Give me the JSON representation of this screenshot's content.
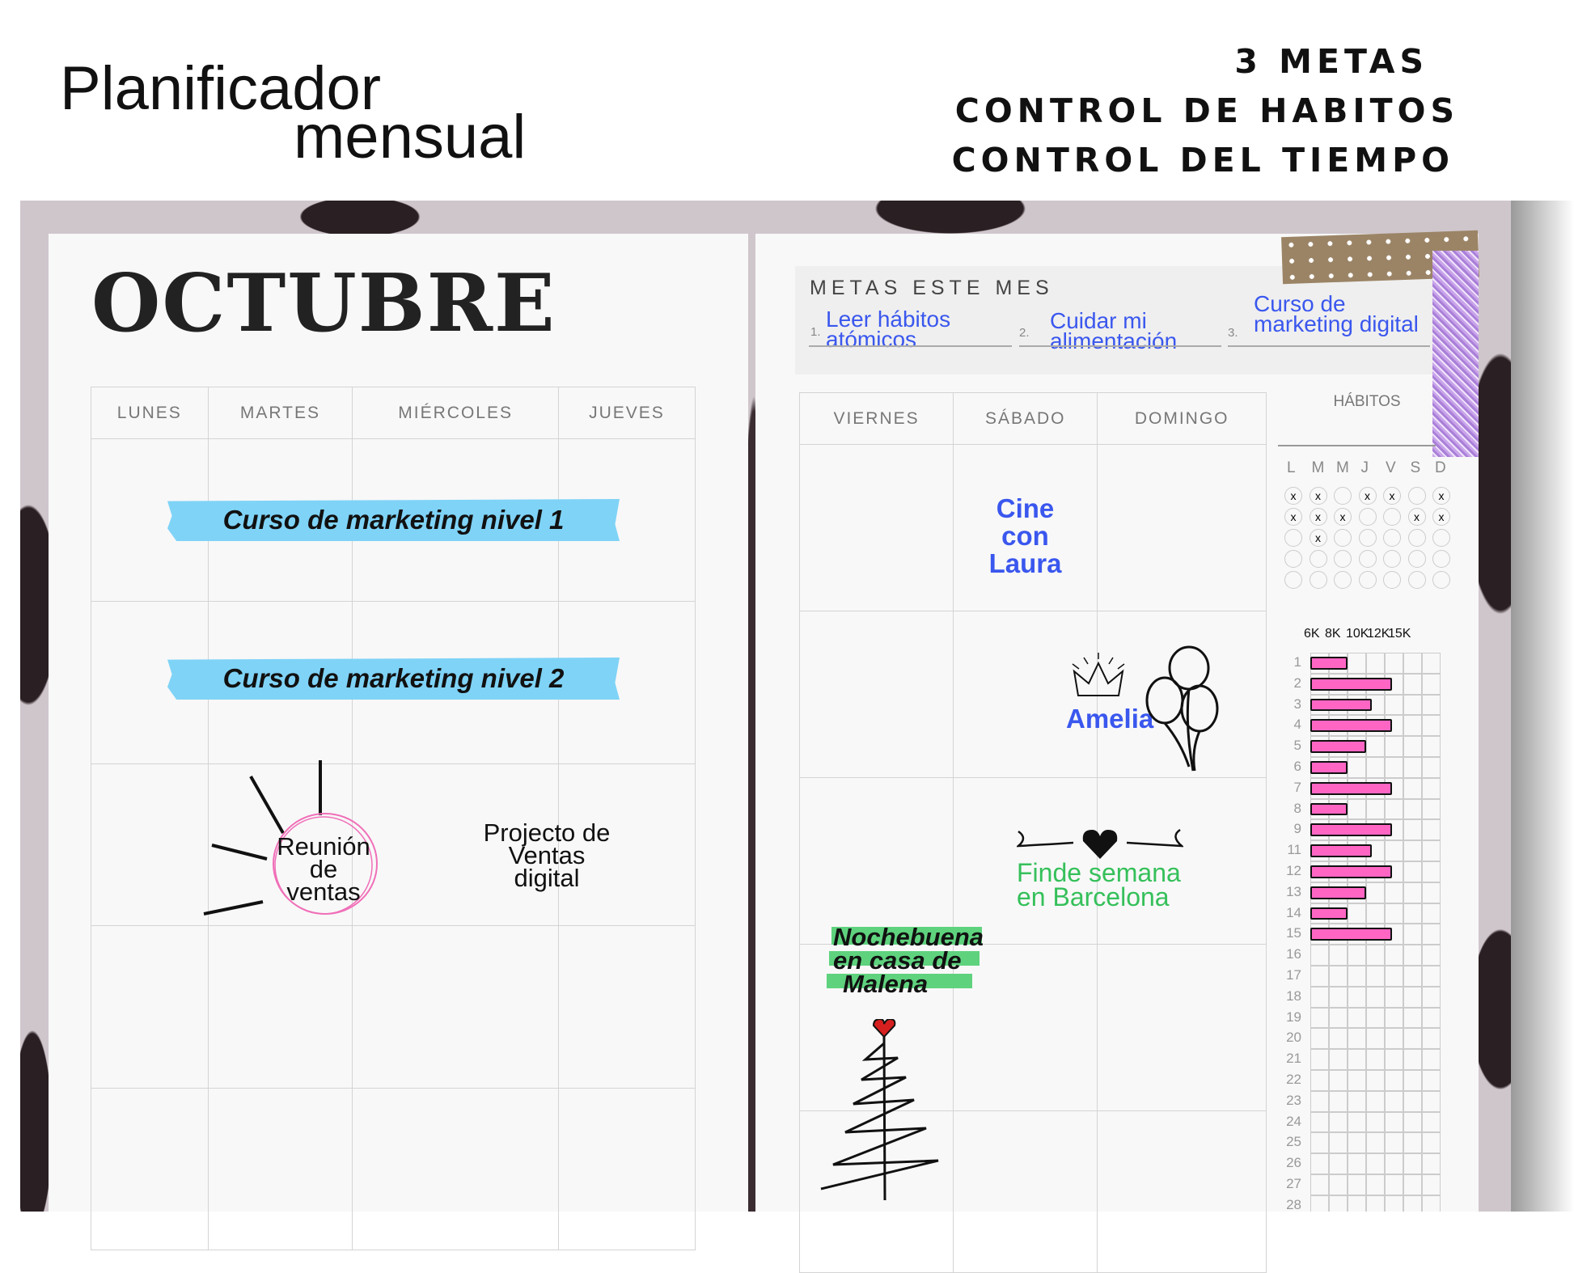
{
  "header": {
    "title_line1": "Planificador",
    "title_line2": "mensual",
    "features": [
      "3 METAS",
      "CONTROL DE HABITOS",
      "CONTROL DEL TIEMPO"
    ]
  },
  "left_page": {
    "month": "OCTUBRE",
    "days": [
      "LUNES",
      "MARTES",
      "MIÉRCOLES",
      "JUEVES"
    ],
    "events": {
      "course1": "Curso de marketing nivel 1",
      "course2": "Curso de marketing nivel 2",
      "meeting": [
        "Reunión",
        "de",
        "ventas"
      ],
      "project": [
        "Projecto de",
        "Ventas",
        "digital"
      ]
    }
  },
  "right_page": {
    "goals_title": "METAS ESTE MES",
    "goals": [
      {
        "num": "1.",
        "lines": [
          "Leer hábitos",
          "atómicos"
        ]
      },
      {
        "num": "2.",
        "lines": [
          "Cuidar mi",
          "alimentación"
        ]
      },
      {
        "num": "3.",
        "lines": [
          "Curso de",
          "marketing digital"
        ]
      }
    ],
    "days": [
      "VIERNES",
      "SÁBADO",
      "DOMINGO"
    ],
    "events": {
      "cine": [
        "Cine",
        "con",
        "Laura"
      ],
      "birthday": "Amelia",
      "weekend": [
        "Finde semana",
        "en Barcelona"
      ],
      "xmas": [
        "Nochebuena",
        "en casa de",
        "Malena"
      ]
    },
    "habits": {
      "title": "HÁBITOS",
      "weekdays": [
        "L",
        "M",
        "M",
        "J",
        "V",
        "S",
        "D"
      ],
      "grid": [
        [
          1,
          1,
          0,
          1,
          1,
          0,
          1
        ],
        [
          1,
          1,
          1,
          0,
          0,
          1,
          1
        ],
        [
          0,
          1,
          0,
          0,
          0,
          0,
          0
        ],
        [
          0,
          0,
          0,
          0,
          0,
          0,
          0
        ],
        [
          0,
          0,
          0,
          0,
          0,
          0,
          0
        ]
      ],
      "mark": "x"
    },
    "colors": {
      "accent_blue": "#3a57ee",
      "highlight_blue": "#7fd3f7",
      "green": "#35c05a",
      "bar_pink": "#ff66c4"
    }
  },
  "chart_data": {
    "type": "bar",
    "orientation": "horizontal",
    "x_tick_labels": [
      "6K",
      "8K",
      "10K",
      "12K",
      "15K"
    ],
    "categories": [
      "1",
      "2",
      "3",
      "4",
      "5",
      "6",
      "7",
      "8",
      "9",
      "11",
      "12",
      "13",
      "14",
      "15",
      "16",
      "17",
      "18",
      "19",
      "20",
      "21",
      "22",
      "23",
      "24",
      "25",
      "26",
      "27",
      "28"
    ],
    "values_grid_columns": [
      2,
      4.4,
      3.3,
      4.4,
      3,
      2,
      4.4,
      2,
      4.4,
      3.3,
      4.4,
      3,
      2,
      4.4,
      null,
      null,
      null,
      null,
      null,
      null,
      null,
      null,
      null,
      null,
      null,
      null,
      null
    ],
    "grid": true
  }
}
